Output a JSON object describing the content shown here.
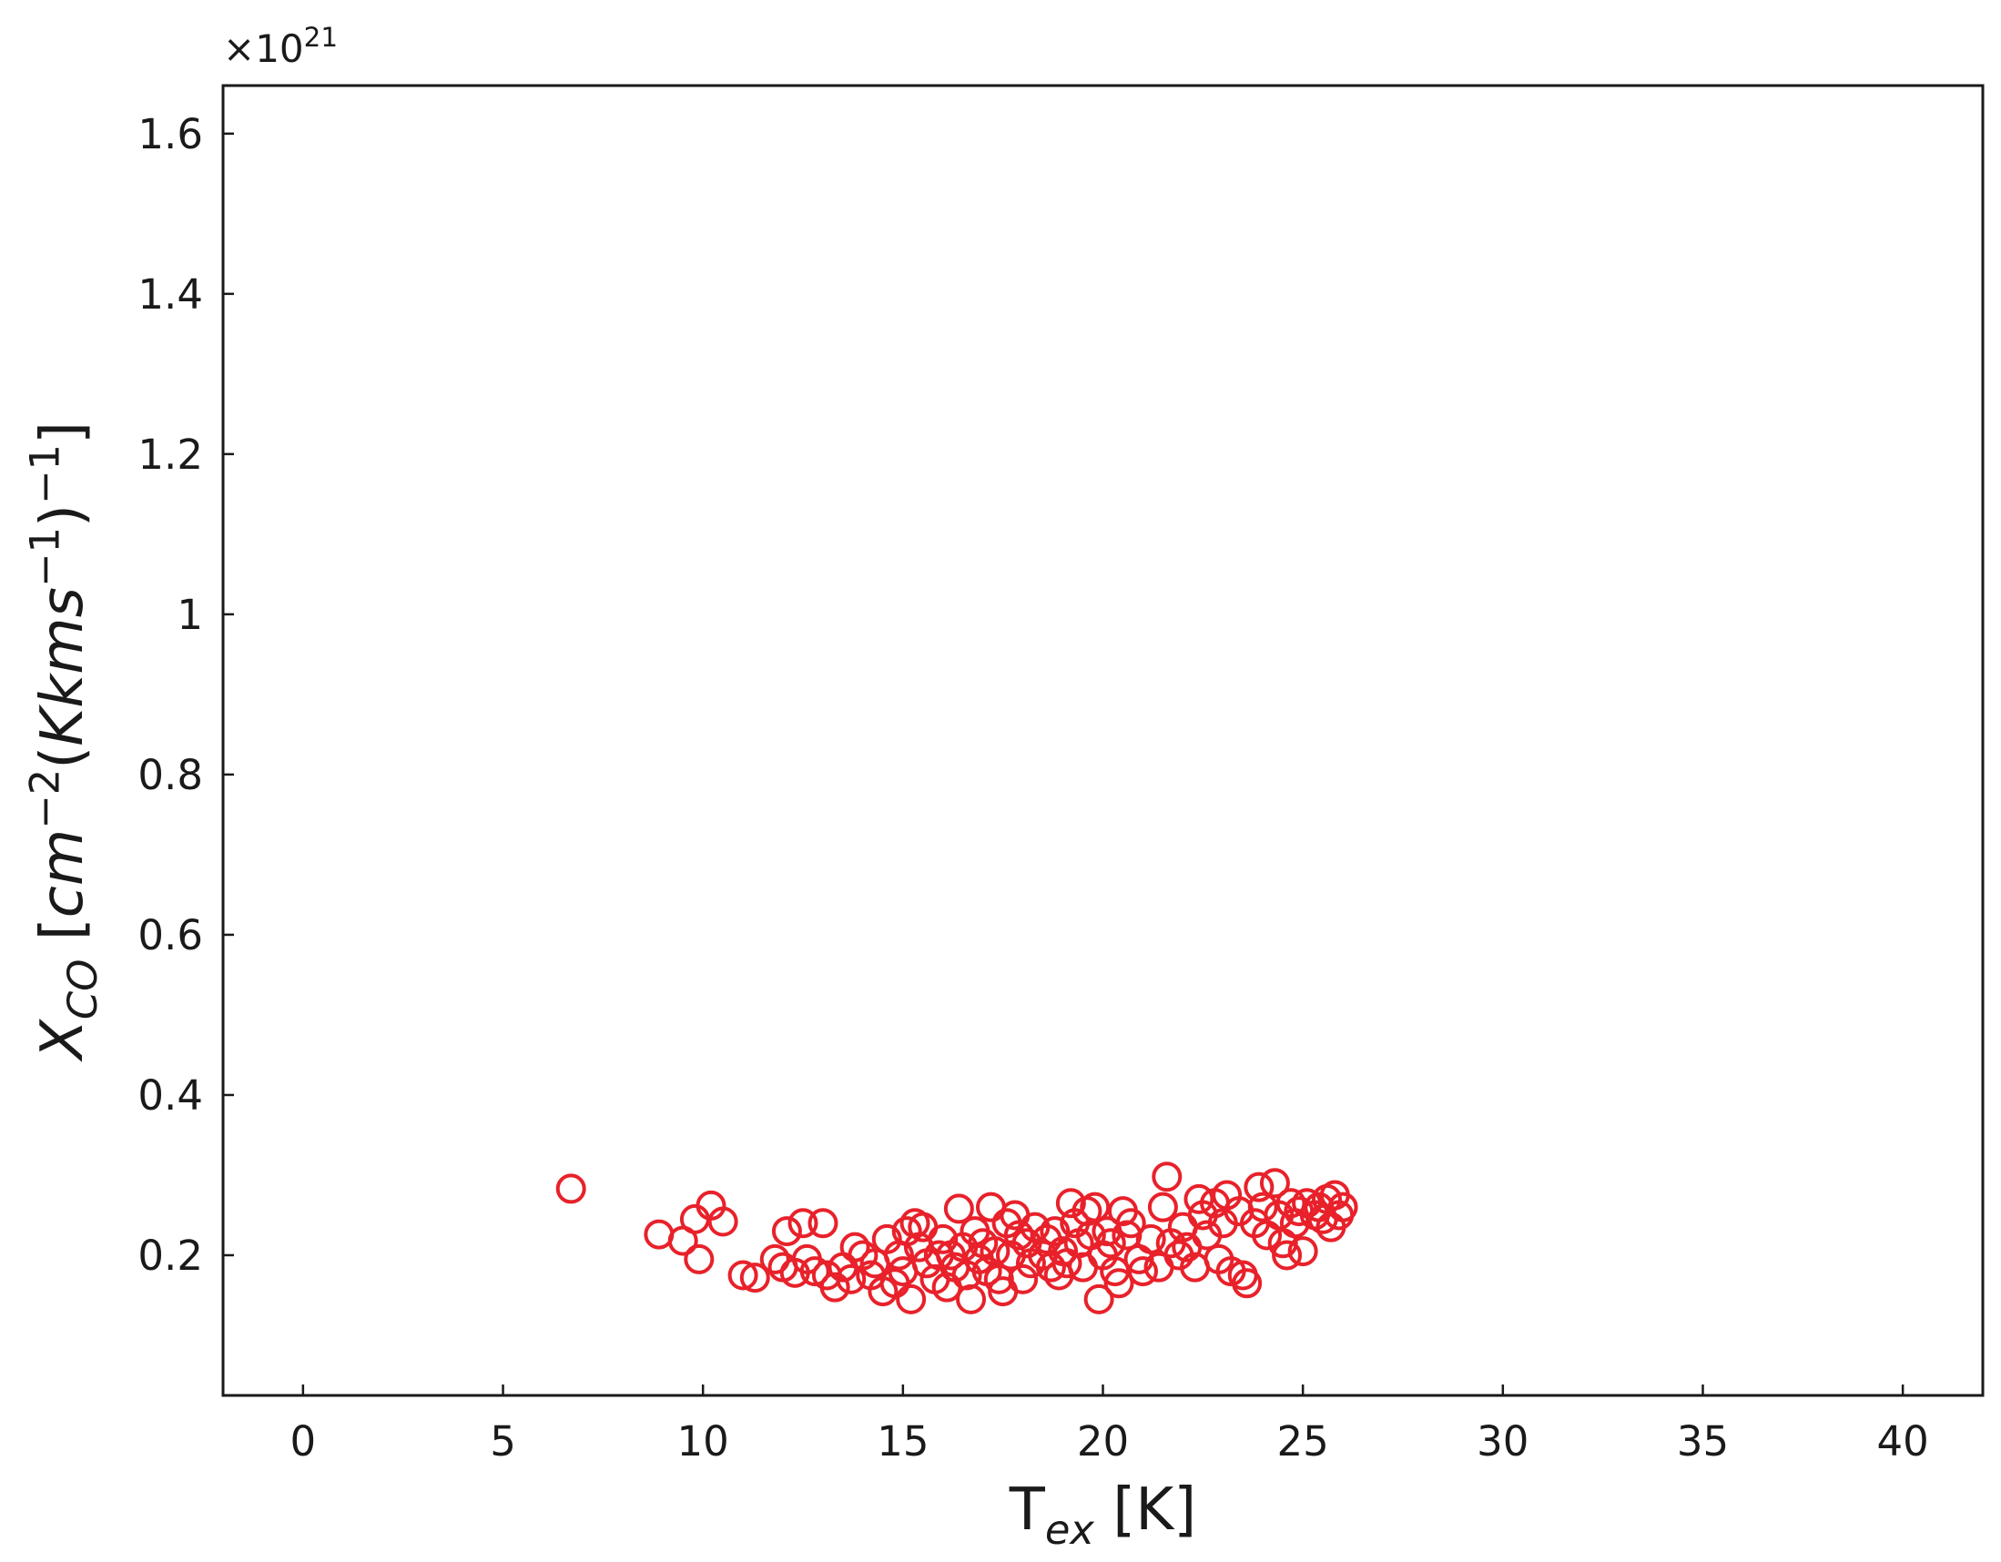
{
  "chart_data": {
    "type": "scatter",
    "xlabel": [
      {
        "text": "T"
      },
      {
        "text": "ex",
        "sub": true,
        "italic": true
      },
      {
        "text": " [K]"
      }
    ],
    "ylabel": [
      {
        "text": "X",
        "italic": true
      },
      {
        "text": "CO",
        "sub": true,
        "italic": true
      },
      {
        "text": " ["
      },
      {
        "text": "cm",
        "italic": true
      },
      {
        "text": "−2",
        "sup": true
      },
      {
        "text": "("
      },
      {
        "text": "Kkms",
        "italic": true
      },
      {
        "text": "−1",
        "sup": true
      },
      {
        "text": ")"
      },
      {
        "text": "−1",
        "sup": true
      },
      {
        "text": "]"
      }
    ],
    "y_offset_text": [
      {
        "text": "×10"
      },
      {
        "text": "21",
        "sup": true
      }
    ],
    "xlim": [
      -2,
      42
    ],
    "ylim": [
      0.025,
      1.66
    ],
    "xticks": [
      0,
      5,
      10,
      15,
      20,
      25,
      30,
      35,
      40
    ],
    "yticks": [
      0.2,
      0.4,
      0.6,
      0.8,
      1.0,
      1.2,
      1.4,
      1.6
    ],
    "tick_direction": "in",
    "grid": false,
    "marker": "open-circle",
    "series": [
      {
        "color": "#e8212a",
        "x": [
          6.7,
          8.9,
          9.5,
          9.8,
          9.9,
          10.2,
          10.5,
          11.0,
          11.3,
          11.8,
          12.0,
          12.1,
          12.3,
          12.5,
          12.6,
          12.8,
          13.0,
          13.1,
          13.3,
          13.5,
          13.7,
          13.8,
          14.0,
          14.2,
          14.3,
          14.5,
          14.6,
          14.8,
          14.9,
          15.0,
          15.1,
          15.2,
          15.3,
          15.4,
          15.5,
          15.6,
          15.8,
          15.9,
          16.0,
          16.1,
          16.2,
          16.3,
          16.4,
          16.5,
          16.6,
          16.7,
          16.8,
          16.9,
          17.0,
          17.1,
          17.2,
          17.3,
          17.4,
          17.5,
          17.6,
          17.7,
          17.8,
          17.9,
          18.0,
          18.1,
          18.2,
          18.3,
          18.5,
          18.6,
          18.7,
          18.8,
          18.9,
          19.0,
          19.1,
          19.2,
          19.3,
          19.4,
          19.5,
          19.6,
          19.7,
          19.8,
          19.9,
          20.0,
          20.1,
          20.2,
          20.3,
          20.4,
          20.5,
          20.6,
          20.7,
          20.9,
          21.0,
          21.2,
          21.4,
          21.5,
          21.6,
          21.7,
          21.9,
          22.0,
          22.1,
          22.3,
          22.4,
          22.5,
          22.6,
          22.8,
          22.9,
          23.0,
          23.1,
          23.2,
          23.4,
          23.5,
          23.6,
          23.8,
          23.9,
          24.0,
          24.1,
          24.3,
          24.4,
          24.5,
          24.6,
          24.7,
          24.8,
          24.9,
          25.0,
          25.1,
          25.3,
          25.4,
          25.5,
          25.6,
          25.7,
          25.8,
          25.9,
          26.0
        ],
        "values": [
          0.283,
          0.226,
          0.218,
          0.245,
          0.195,
          0.262,
          0.242,
          0.175,
          0.172,
          0.195,
          0.185,
          0.23,
          0.178,
          0.24,
          0.195,
          0.18,
          0.24,
          0.175,
          0.16,
          0.185,
          0.17,
          0.21,
          0.2,
          0.175,
          0.19,
          0.155,
          0.22,
          0.165,
          0.2,
          0.18,
          0.23,
          0.145,
          0.24,
          0.21,
          0.235,
          0.19,
          0.17,
          0.2,
          0.22,
          0.16,
          0.2,
          0.185,
          0.258,
          0.21,
          0.175,
          0.145,
          0.23,
          0.195,
          0.215,
          0.18,
          0.26,
          0.205,
          0.17,
          0.155,
          0.24,
          0.2,
          0.25,
          0.225,
          0.17,
          0.215,
          0.19,
          0.235,
          0.2,
          0.22,
          0.185,
          0.23,
          0.175,
          0.205,
          0.19,
          0.265,
          0.24,
          0.215,
          0.185,
          0.255,
          0.225,
          0.26,
          0.145,
          0.2,
          0.23,
          0.215,
          0.18,
          0.165,
          0.255,
          0.225,
          0.24,
          0.195,
          0.18,
          0.22,
          0.185,
          0.26,
          0.298,
          0.215,
          0.2,
          0.235,
          0.21,
          0.185,
          0.27,
          0.25,
          0.225,
          0.265,
          0.195,
          0.24,
          0.275,
          0.18,
          0.255,
          0.175,
          0.165,
          0.24,
          0.285,
          0.26,
          0.225,
          0.29,
          0.25,
          0.215,
          0.2,
          0.265,
          0.24,
          0.255,
          0.205,
          0.265,
          0.25,
          0.26,
          0.245,
          0.27,
          0.235,
          0.275,
          0.25,
          0.26
        ]
      }
    ]
  }
}
